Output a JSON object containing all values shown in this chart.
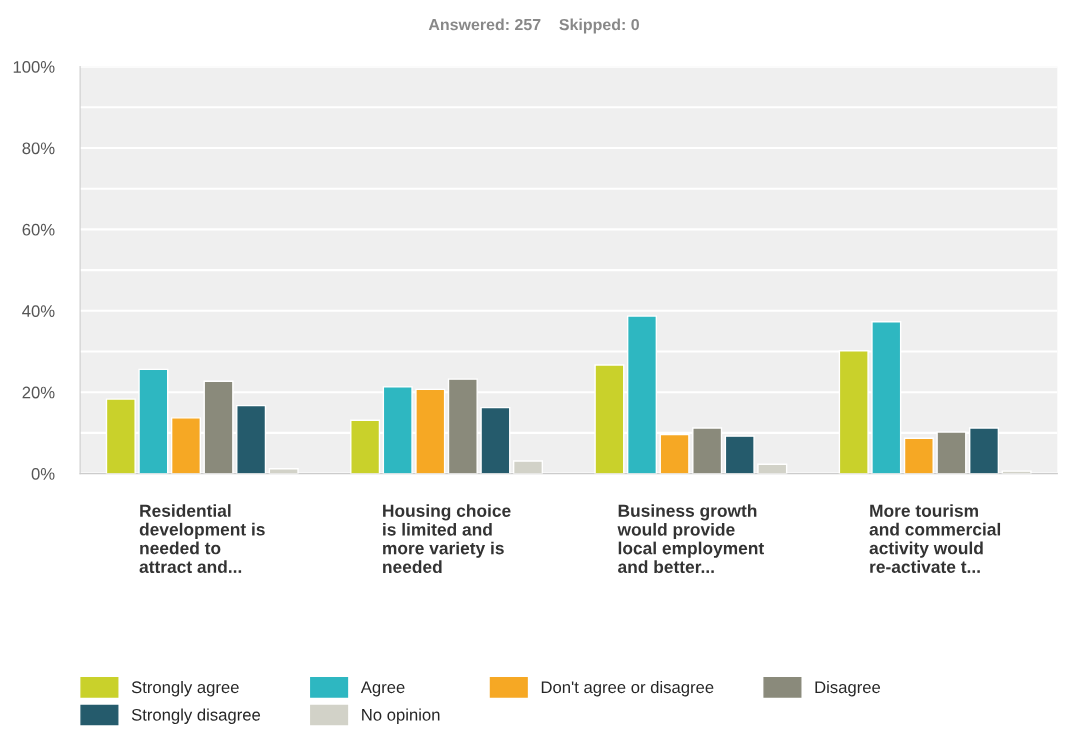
{
  "chart_data": {
    "type": "bar",
    "title": "Answered: 257    Skipped: 0",
    "categories": [
      "Residential\ndevelopment is\nneeded to\nattract and...",
      "Housing choice\nis limited and\nmore variety is\nneeded",
      "Business growth\nwould provide\nlocal employment\nand better...",
      "More tourism\nand commercial\nactivity would\nre-activate t..."
    ],
    "series": [
      {
        "name": "Strongly agree",
        "color": "#c9d12b",
        "values": [
          18.3,
          13.1,
          26.7,
          30.2
        ]
      },
      {
        "name": "Agree",
        "color": "#2eb7c1",
        "values": [
          25.6,
          21.3,
          38.7,
          37.3
        ]
      },
      {
        "name": "Don't agree or disagree",
        "color": "#f6a824",
        "values": [
          13.7,
          20.7,
          9.6,
          8.7
        ]
      },
      {
        "name": "Disagree",
        "color": "#8a8a7b",
        "values": [
          22.7,
          23.2,
          11.2,
          10.2
        ]
      },
      {
        "name": "Strongly disagree",
        "color": "#255b6c",
        "values": [
          16.7,
          16.2,
          9.2,
          11.2
        ]
      },
      {
        "name": "No opinion",
        "color": "#d2d2c8",
        "values": [
          1.2,
          3.1,
          2.3,
          0.6
        ]
      }
    ],
    "ylim": [
      0,
      100
    ],
    "yticks": [
      {
        "value": 0,
        "label": "0%"
      },
      {
        "value": 20,
        "label": "20%"
      },
      {
        "value": 40,
        "label": "40%"
      },
      {
        "value": 60,
        "label": "60%"
      },
      {
        "value": 80,
        "label": "80%"
      },
      {
        "value": 100,
        "label": "100%"
      }
    ],
    "grid": "y",
    "legend": "bottom"
  }
}
